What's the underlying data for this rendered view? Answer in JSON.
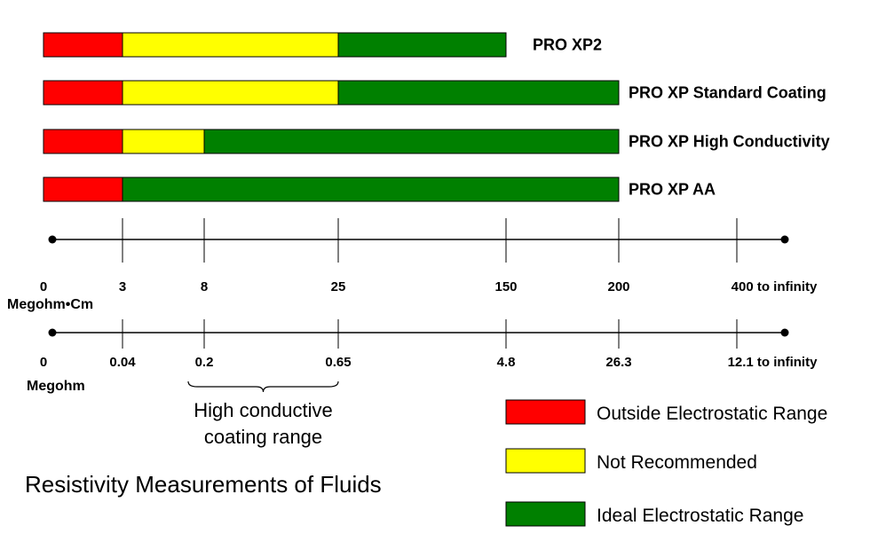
{
  "chart_data": {
    "type": "bar",
    "title": "Resistivity Measurements of Fluids",
    "scale_top": {
      "unit": "Megohm•Cm",
      "ticks": [
        "0",
        "3",
        "8",
        "25",
        "150",
        "200",
        "400 to infinity"
      ]
    },
    "scale_bottom": {
      "unit": "Megohm",
      "ticks": [
        "0",
        "0.04",
        "0.2",
        "0.65",
        "4.8",
        "26.3",
        "12.1 to infinity"
      ]
    },
    "series": [
      {
        "name": "PRO XP2",
        "segments": [
          {
            "category": "outside",
            "from": "0",
            "to": "3"
          },
          {
            "category": "not_recommended",
            "from": "3",
            "to": "25"
          },
          {
            "category": "ideal",
            "from": "25",
            "to": "150"
          }
        ]
      },
      {
        "name": "PRO XP Standard Coating",
        "segments": [
          {
            "category": "outside",
            "from": "0",
            "to": "3"
          },
          {
            "category": "not_recommended",
            "from": "3",
            "to": "25"
          },
          {
            "category": "ideal",
            "from": "25",
            "to": "200"
          }
        ]
      },
      {
        "name": "PRO XP High Conductivity",
        "segments": [
          {
            "category": "outside",
            "from": "0",
            "to": "3"
          },
          {
            "category": "not_recommended",
            "from": "3",
            "to": "8"
          },
          {
            "category": "ideal",
            "from": "8",
            "to": "200"
          }
        ]
      },
      {
        "name": "PRO XP AA",
        "segments": [
          {
            "category": "outside",
            "from": "0",
            "to": "3"
          },
          {
            "category": "ideal",
            "from": "3",
            "to": "200"
          }
        ]
      }
    ],
    "brace": {
      "from": "0.2",
      "to": "0.65",
      "lines": [
        "High conductive",
        "coating range"
      ]
    },
    "legend": {
      "placement": "bottom-right",
      "items": [
        {
          "category": "outside",
          "label": "Outside Electrostatic Range",
          "color": "#ff0000"
        },
        {
          "category": "not_recommended",
          "label": "Not Recommended",
          "color": "#ffff00"
        },
        {
          "category": "ideal",
          "label": "Ideal Electrostatic Range",
          "color": "#008000"
        }
      ]
    }
  }
}
